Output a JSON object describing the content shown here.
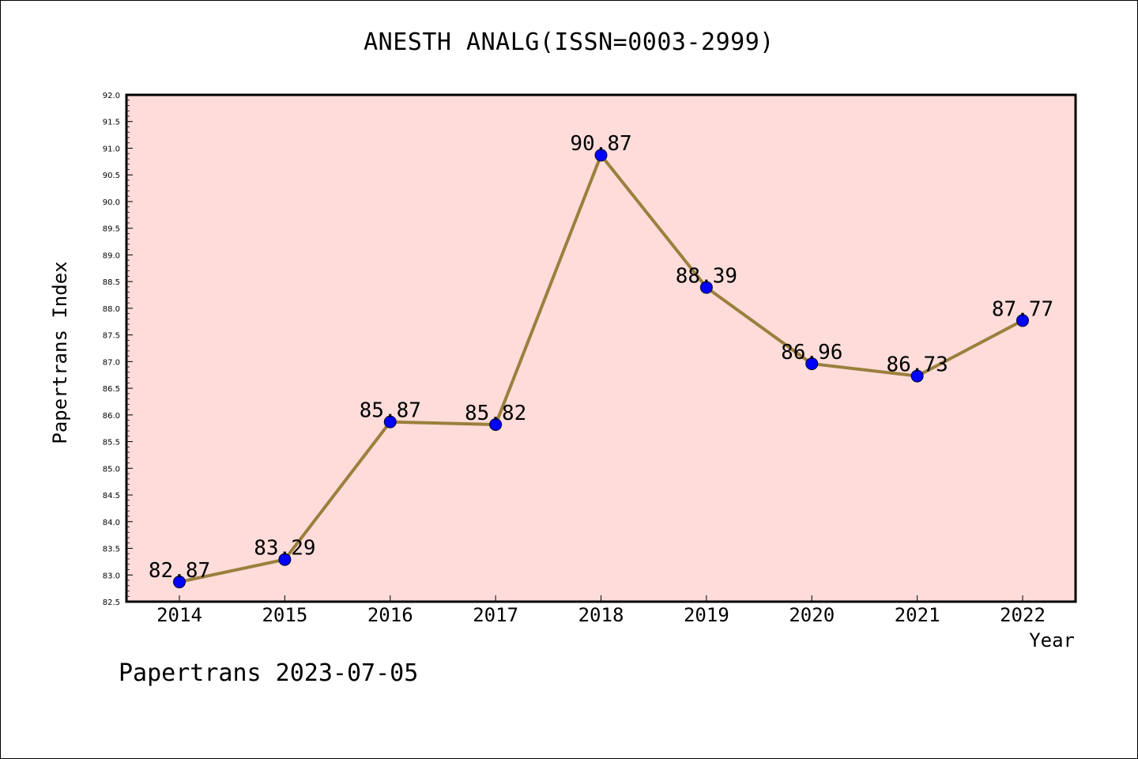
{
  "chart_data": {
    "type": "line",
    "title": "ANESTH ANALG(ISSN=0003-2999)",
    "xlabel": "Year",
    "ylabel": "Papertrans Index",
    "categories": [
      "2014",
      "2015",
      "2016",
      "2017",
      "2018",
      "2019",
      "2020",
      "2021",
      "2022"
    ],
    "series": [
      {
        "values": [
          82.87,
          83.29,
          85.87,
          85.82,
          90.87,
          88.39,
          86.96,
          86.73,
          87.77
        ],
        "labels": [
          "82.87",
          "83.29",
          "85.87",
          "85.82",
          "90.87",
          "88.39",
          "86.96",
          "86.73",
          "87.77"
        ],
        "line_color": "#9b7f3c",
        "marker_color": "#0000ff"
      }
    ],
    "ylim": [
      82.5,
      92.0
    ],
    "yticks": [
      "82.5",
      "83.0",
      "83.5",
      "84.0",
      "84.5",
      "85.0",
      "85.5",
      "86.0",
      "86.5",
      "87.0",
      "87.5",
      "88.0",
      "88.5",
      "89.0",
      "89.5",
      "90.0",
      "90.5",
      "91.0",
      "91.5",
      "92.0"
    ],
    "plot_background": "#fddcda",
    "grid": false,
    "legend": "none"
  },
  "footer": "Papertrans 2023-07-05"
}
